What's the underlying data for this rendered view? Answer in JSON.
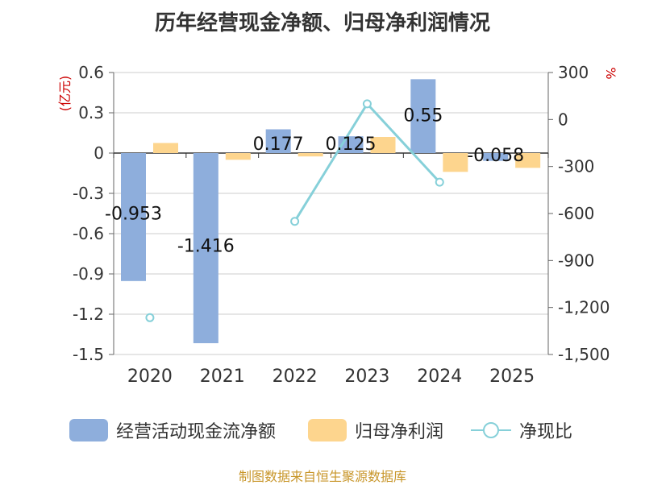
{
  "title": "历年经营现金净额、归母净利润情况",
  "source": "制图数据来自恒生聚源数据库",
  "colors": {
    "cash": "#8eaedc",
    "profit": "#fdd58e",
    "ratio": "#86d0d9",
    "axis_label": "#cc0000",
    "grid": "#cccccc",
    "text": "#333333"
  },
  "chart_data": {
    "type": "bar",
    "title": "历年经营现金净额、归母净利润情况",
    "categories": [
      "2020",
      "2021",
      "2022",
      "2023",
      "2024",
      "2025"
    ],
    "ylabel": "(亿元)",
    "y2label": "%",
    "ylim": [
      -1.5,
      0.6
    ],
    "y2lim": [
      -1500,
      300
    ],
    "yticks": [
      "0.6",
      "0.3",
      "0",
      "-0.3",
      "-0.6",
      "-0.9",
      "-1.2",
      "-1.5"
    ],
    "y2ticks": [
      "300",
      "0",
      "-300",
      "-600",
      "-900",
      "-1,200",
      "-1,500"
    ],
    "series": [
      {
        "name": "经营活动现金流净额",
        "type": "bar",
        "axis": "left",
        "values": [
          -0.953,
          -1.416,
          0.177,
          0.125,
          0.55,
          -0.058
        ],
        "labels": [
          "-0.953",
          "-1.416",
          "0.177",
          "0.125",
          "0.55",
          "-0.058"
        ]
      },
      {
        "name": "归母净利润",
        "type": "bar",
        "axis": "left",
        "values": [
          0.075,
          -0.05,
          -0.025,
          0.12,
          -0.14,
          -0.11
        ]
      },
      {
        "name": "净现比",
        "type": "line",
        "axis": "right",
        "values": [
          -1265,
          null,
          -650,
          100,
          -400,
          null
        ]
      }
    ]
  }
}
